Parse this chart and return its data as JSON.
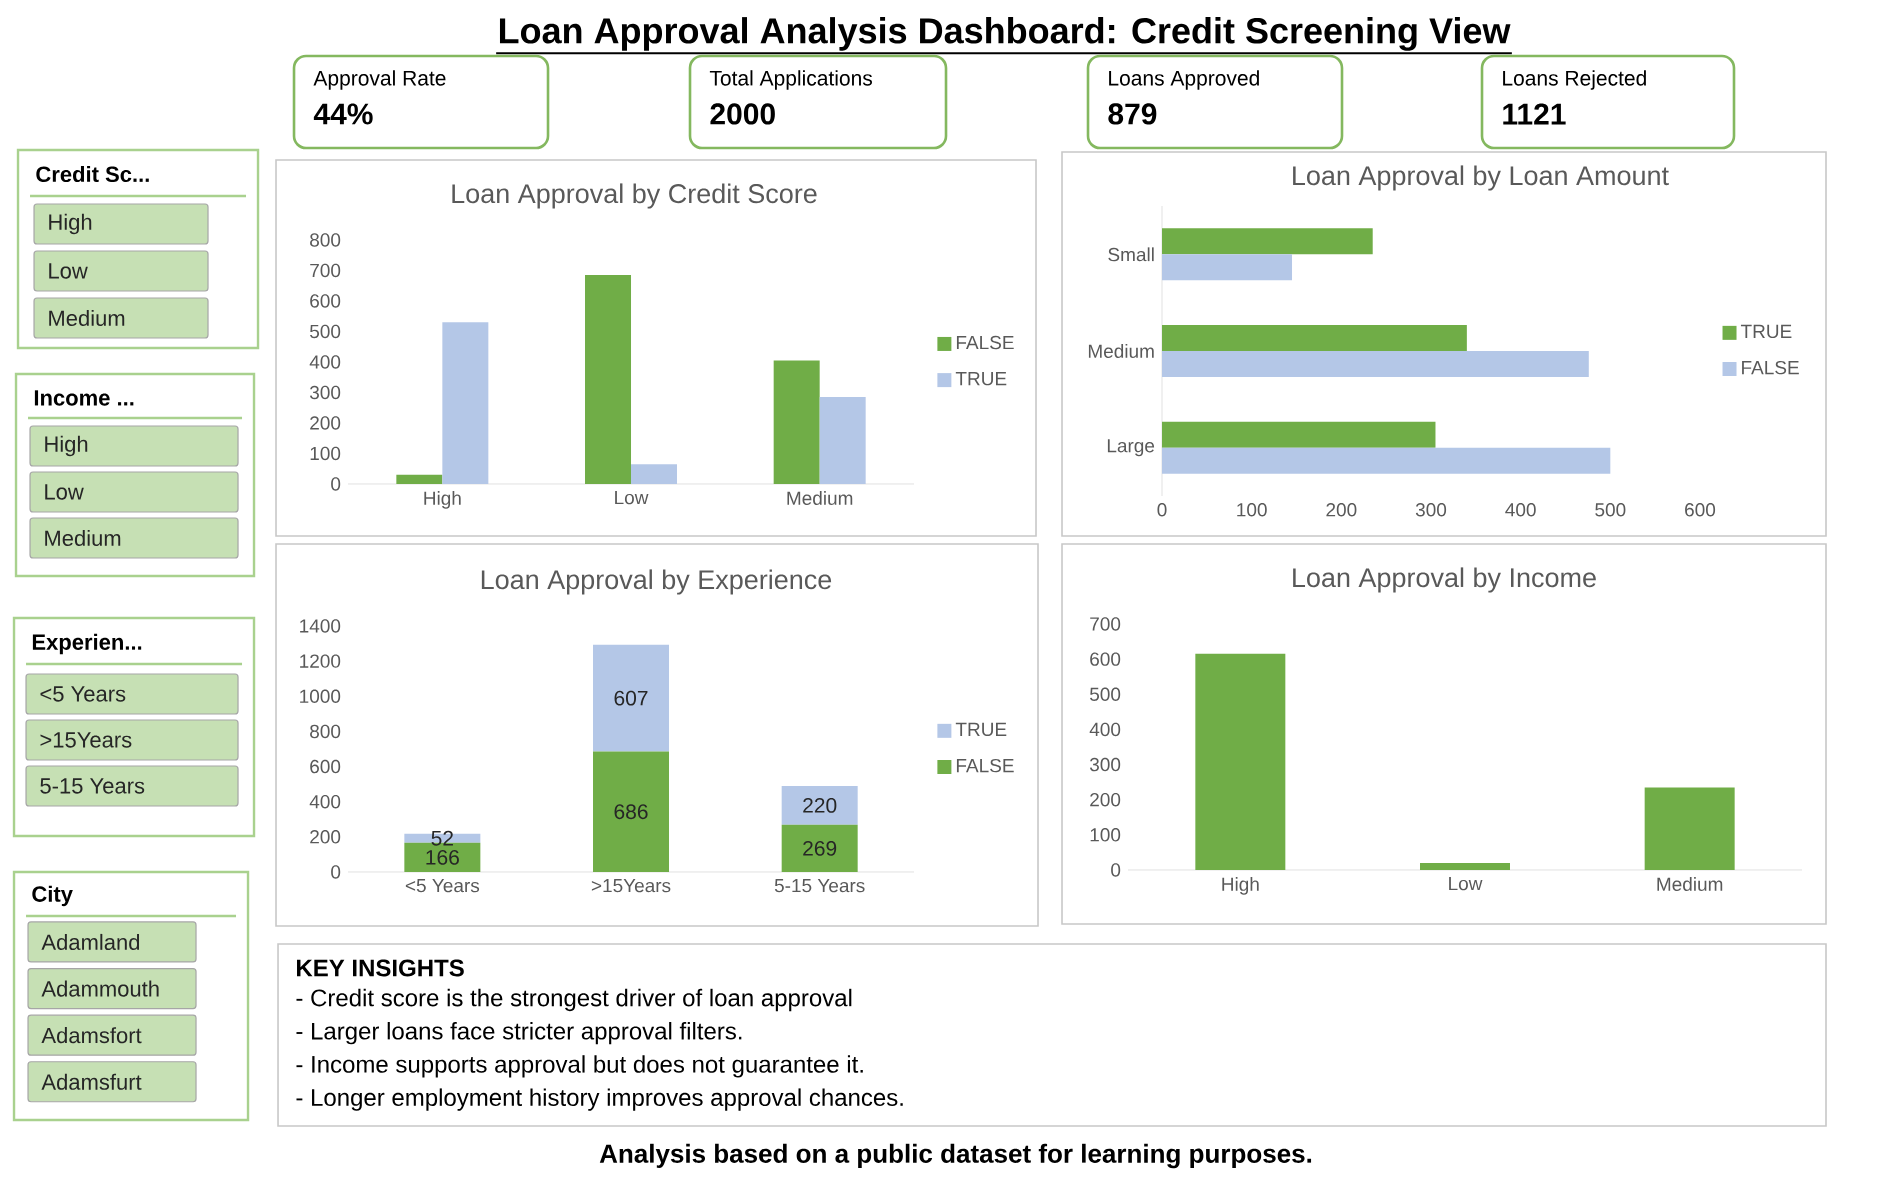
{
  "chart_data": [
    {
      "type": "other",
      "title": "Loan Approval Analysis Dashboard: Credit Screening View",
      "categories": [
        "Approval Rate",
        "Total Applications",
        "Loans Approved",
        "Loans Rejected"
      ],
      "values": [
        44,
        2000,
        879,
        1121
      ],
      "value_labels": [
        "44%",
        "2000",
        "879",
        "1121"
      ],
      "annotations": [
        "Analysis based on a public dataset for learning purposes."
      ]
    },
    {
      "type": "other",
      "title": "Credit Sc...",
      "annotations": [
        "High",
        "Low",
        "Medium"
      ]
    },
    {
      "type": "other",
      "title": "Income ...",
      "annotations": [
        "High",
        "Low",
        "Medium"
      ]
    },
    {
      "type": "other",
      "title": "Experien...",
      "annotations": [
        "<5 Years",
        ">15Years",
        "5-15 Years"
      ]
    },
    {
      "type": "other",
      "title": "City",
      "annotations": [
        "Adamland",
        "Adammouth",
        "Adamsfort",
        "Adamsfurt"
      ]
    },
    {
      "type": "bar",
      "title": "Loan Approval by Credit Score",
      "categories": [
        "High",
        "Low",
        "Medium"
      ],
      "series": [
        {
          "name": "FALSE",
          "color": "#70ad47",
          "values": [
            30,
            685,
            405
          ]
        },
        {
          "name": "TRUE",
          "color": "#b4c7e7",
          "values": [
            530,
            65,
            285
          ]
        }
      ],
      "ylim": [
        0,
        800
      ],
      "yticks": [
        0,
        100,
        200,
        300,
        400,
        500,
        600,
        700,
        800
      ],
      "legend": "right"
    },
    {
      "type": "bar",
      "orientation": "horizontal",
      "title": "Loan Approval by Loan Amount",
      "categories": [
        "Small",
        "Medium",
        "Large"
      ],
      "series": [
        {
          "name": "TRUE",
          "color": "#70ad47",
          "values": [
            235,
            340,
            305
          ]
        },
        {
          "name": "FALSE",
          "color": "#b4c7e7",
          "values": [
            145,
            476,
            500
          ]
        }
      ],
      "xlim": [
        0,
        600
      ],
      "xticks": [
        0,
        100,
        200,
        300,
        400,
        500,
        600
      ],
      "legend": "right"
    },
    {
      "type": "bar",
      "stacked": true,
      "title": "Loan Approval by Experience",
      "categories": [
        "<5 Years",
        ">15Years",
        "5-15 Years"
      ],
      "series": [
        {
          "name": "FALSE",
          "color": "#70ad47",
          "values": [
            166,
            686,
            269
          ]
        },
        {
          "name": "TRUE",
          "color": "#b4c7e7",
          "values": [
            52,
            607,
            220
          ]
        }
      ],
      "ylim": [
        0,
        1400
      ],
      "yticks": [
        0,
        200,
        400,
        600,
        800,
        1000,
        1200,
        1400
      ],
      "data_labels": true,
      "legend": "right"
    },
    {
      "type": "bar",
      "title": "Loan Approval by Income",
      "categories": [
        "High",
        "Low",
        "Medium"
      ],
      "values": [
        615,
        20,
        235
      ],
      "color": "#70ad47",
      "ylim": [
        0,
        700
      ],
      "yticks": [
        0,
        100,
        200,
        300,
        400,
        500,
        600,
        700
      ]
    },
    {
      "type": "other",
      "title": "KEY INSIGHTS",
      "annotations": [
        "- Credit score is the strongest driver of loan approval",
        "- Larger loans face stricter approval filters.",
        "- Income supports approval but does not guarantee it.",
        "- Longer employment history improves approval chances."
      ]
    }
  ]
}
